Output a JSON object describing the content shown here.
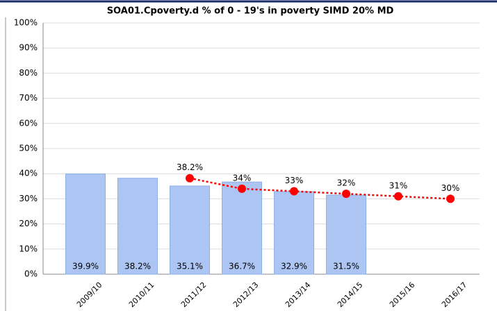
{
  "chart_data": {
    "type": "bar",
    "title": "SOA01.Cpoverty.d % of 0 - 19's in poverty SIMD 20% MD",
    "categories": [
      "2009/10",
      "2010/11",
      "2011/12",
      "2012/13",
      "2013/14",
      "2014/15",
      "2015/16",
      "2016/17"
    ],
    "series": [
      {
        "type": "bar",
        "color": "#adc5f3",
        "values": [
          39.9,
          38.2,
          35.1,
          36.7,
          32.9,
          31.5,
          null,
          null
        ],
        "value_labels": [
          "39.9%",
          "38.2%",
          "35.1%",
          "36.7%",
          "32.9%",
          "31.5%",
          null,
          null
        ]
      },
      {
        "type": "line",
        "color": "#ff0000",
        "values": [
          null,
          null,
          38.2,
          34,
          33,
          32,
          31,
          30
        ],
        "value_labels": [
          null,
          null,
          "38.2%",
          "34%",
          "33%",
          "32%",
          "31%",
          "30%"
        ]
      }
    ],
    "ylim": [
      0,
      100
    ],
    "yticks": [
      {
        "value": 0,
        "label": "0%"
      },
      {
        "value": 10,
        "label": "10%"
      },
      {
        "value": 20,
        "label": "20%"
      },
      {
        "value": 30,
        "label": "30%"
      },
      {
        "value": 40,
        "label": "40%"
      },
      {
        "value": 50,
        "label": "50%"
      },
      {
        "value": 60,
        "label": "60%"
      },
      {
        "value": 70,
        "label": "70%"
      },
      {
        "value": 80,
        "label": "80%"
      },
      {
        "value": 90,
        "label": "90%"
      },
      {
        "value": 100,
        "label": "100%"
      }
    ],
    "grid": true
  }
}
